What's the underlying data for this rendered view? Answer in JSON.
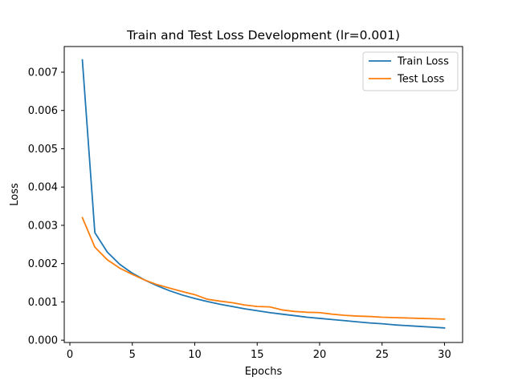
{
  "chart_data": {
    "type": "line",
    "title": "Train and Test Loss Development (lr=0.001)",
    "xlabel": "Epochs",
    "ylabel": "Loss",
    "xlim": [
      -0.45,
      31.45
    ],
    "ylim": [
      -6e-05,
      0.00767
    ],
    "xticks": [
      0,
      5,
      10,
      15,
      20,
      25,
      30
    ],
    "xtick_labels": [
      "0",
      "5",
      "10",
      "15",
      "20",
      "25",
      "30"
    ],
    "yticks": [
      0,
      0.001,
      0.002,
      0.003,
      0.004,
      0.005,
      0.006,
      0.007
    ],
    "ytick_labels": [
      "0.000",
      "0.001",
      "0.002",
      "0.003",
      "0.004",
      "0.005",
      "0.006",
      "0.007"
    ],
    "grid": false,
    "legend_position": "top-right",
    "x": [
      1,
      2,
      3,
      4,
      5,
      6,
      7,
      8,
      9,
      10,
      11,
      12,
      13,
      14,
      15,
      16,
      17,
      18,
      19,
      20,
      21,
      22,
      23,
      24,
      25,
      26,
      27,
      28,
      29,
      30
    ],
    "series": [
      {
        "name": "Train Loss",
        "color": "#1f77b4",
        "values": [
          0.00732,
          0.00281,
          0.0023,
          0.00198,
          0.00175,
          0.00157,
          0.00142,
          0.00129,
          0.00118,
          0.00109,
          0.00101,
          0.00094,
          0.00088,
          0.00082,
          0.00077,
          0.00072,
          0.00068,
          0.00064,
          0.0006,
          0.00057,
          0.00054,
          0.00051,
          0.00048,
          0.00045,
          0.00043,
          0.0004,
          0.00038,
          0.00036,
          0.00034,
          0.00032
        ]
      },
      {
        "name": "Test Loss",
        "color": "#ff7f0e",
        "values": [
          0.0032,
          0.00243,
          0.0021,
          0.00188,
          0.00172,
          0.00157,
          0.00145,
          0.00136,
          0.00127,
          0.00119,
          0.00107,
          0.00102,
          0.00098,
          0.00092,
          0.00088,
          0.00087,
          0.00079,
          0.00075,
          0.00073,
          0.00072,
          0.00068,
          0.00065,
          0.00063,
          0.00062,
          0.0006,
          0.00059,
          0.00058,
          0.00057,
          0.00056,
          0.00055
        ]
      }
    ]
  }
}
